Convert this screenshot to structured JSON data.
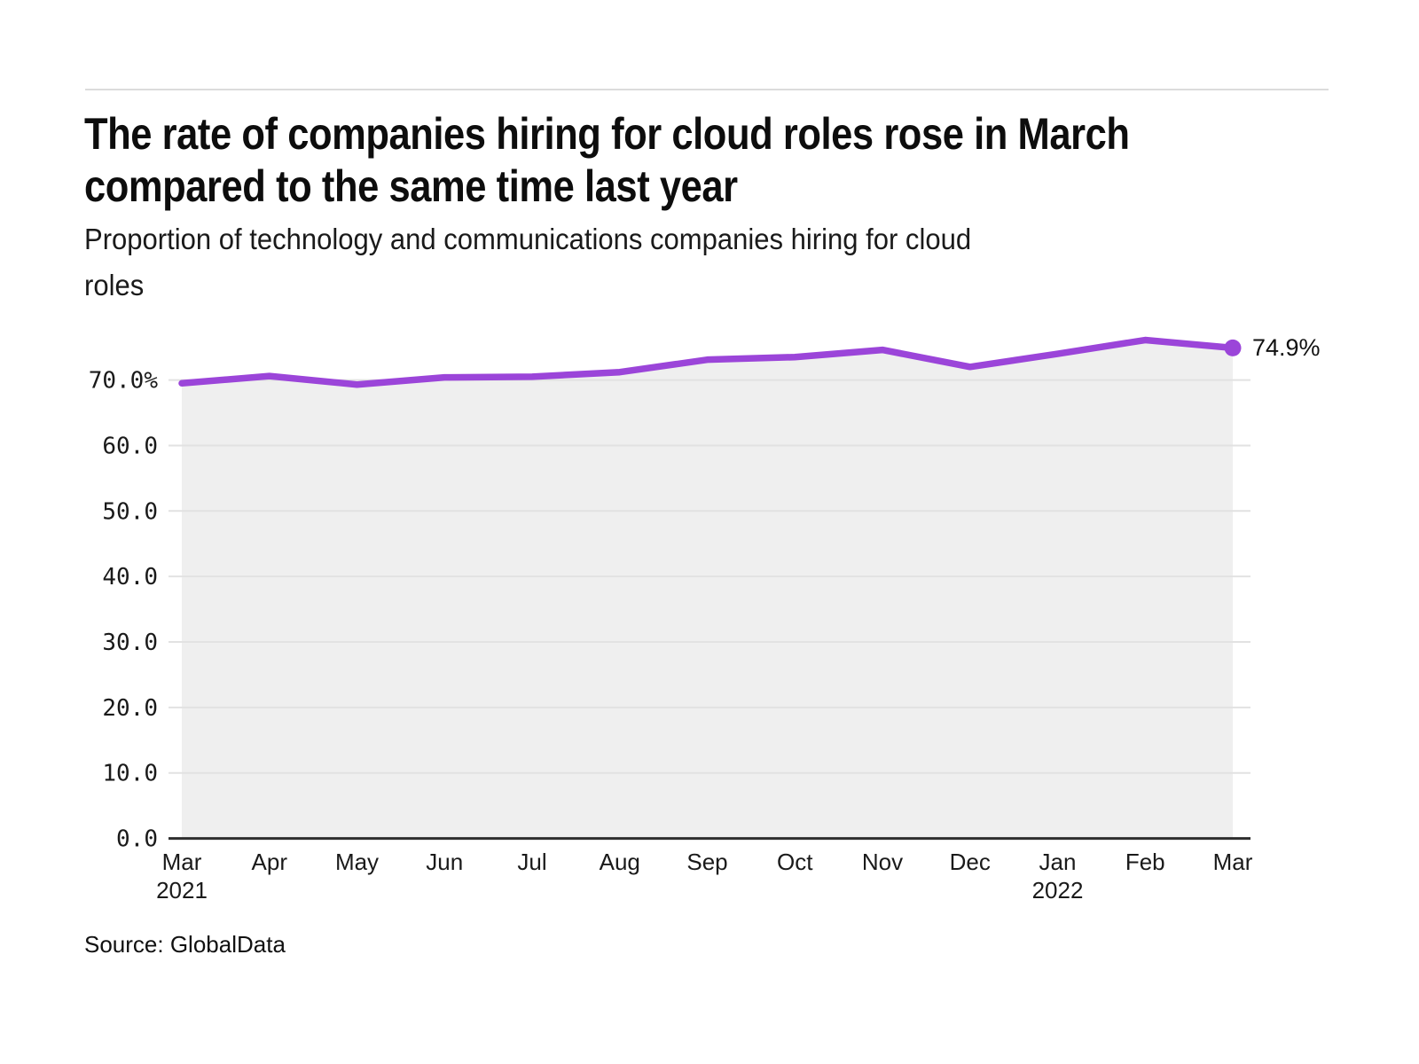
{
  "page": {
    "title_lines": [
      "The rate of companies hiring for cloud roles rose in March",
      "compared to the same time last year"
    ],
    "subtitle_lines": [
      "Proportion of technology and communications companies hiring for cloud",
      "roles"
    ],
    "source": "Source: GlobalData"
  },
  "chart_data": {
    "type": "line",
    "title": "The rate of companies hiring for cloud roles rose in March compared to the same time last year",
    "subtitle": "Proportion of technology and communications companies hiring for cloud roles",
    "categories": [
      "Mar 2021",
      "Apr 2021",
      "May 2021",
      "Jun 2021",
      "Jul 2021",
      "Aug 2021",
      "Sep 2021",
      "Oct 2021",
      "Nov 2021",
      "Dec 2021",
      "Jan 2022",
      "Feb 2022",
      "Mar 2022"
    ],
    "series": [
      {
        "name": "Proportion of technology and communications companies hiring for cloud roles (%)",
        "values": [
          69.5,
          70.6,
          69.3,
          70.4,
          70.5,
          71.2,
          73.1,
          73.5,
          74.6,
          72.0,
          74.0,
          76.1,
          74.9
        ]
      }
    ],
    "x_tick_labels": [
      "Mar",
      "Apr",
      "May",
      "Jun",
      "Jul",
      "Aug",
      "Sep",
      "Oct",
      "Nov",
      "Dec",
      "Jan",
      "Feb",
      "Mar"
    ],
    "year_labels": [
      {
        "month_index": 0,
        "label": "2021"
      },
      {
        "month_index": 10,
        "label": "2022"
      }
    ],
    "y_ticks": [
      {
        "value": 0,
        "label": "0.0"
      },
      {
        "value": 10,
        "label": "10.0"
      },
      {
        "value": 20,
        "label": "20.0"
      },
      {
        "value": 30,
        "label": "30.0"
      },
      {
        "value": 40,
        "label": "40.0"
      },
      {
        "value": 50,
        "label": "50.0"
      },
      {
        "value": 60,
        "label": "60.0"
      },
      {
        "value": 70,
        "label": "70.0%"
      }
    ],
    "ylim": [
      0,
      80
    ],
    "grid": true,
    "legend_position": "none",
    "end_point_label": "74.9%",
    "colors": {
      "line": "#9B45D9",
      "area_fill": "#EFEFEF",
      "gridline": "#E2E2E2",
      "axis_baseline": "#2E2E2E",
      "text": "#1A1A1A"
    }
  }
}
